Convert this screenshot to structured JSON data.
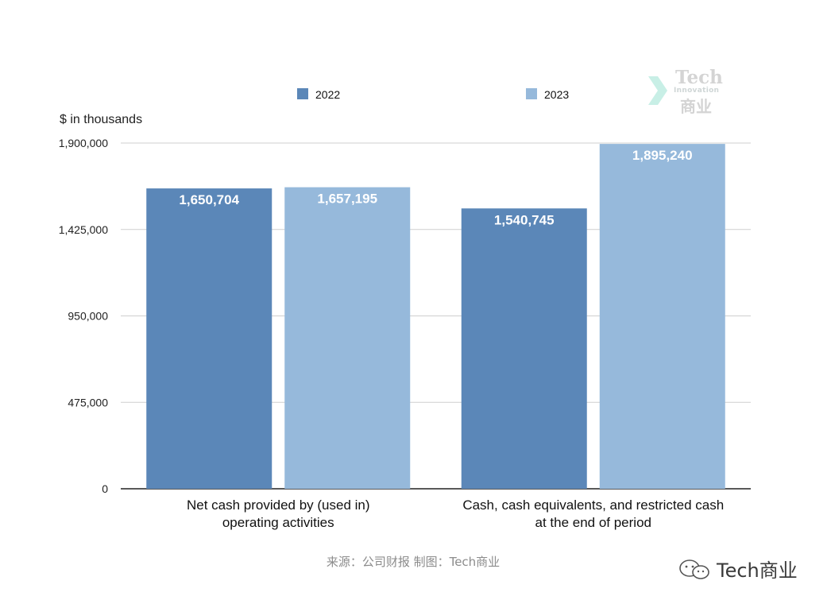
{
  "chart_data": {
    "type": "bar",
    "title": "",
    "ylabel": "$ in thousands",
    "xlabel": "",
    "ylim": [
      0,
      1900000
    ],
    "yticks": [
      "0",
      "475,000",
      "950,000",
      "1,425,000",
      "1,900,000"
    ],
    "ytick_values": [
      0,
      475000,
      950000,
      1425000,
      1900000
    ],
    "categories": [
      [
        "Net cash provided by (used in)",
        "operating activities"
      ],
      [
        "Cash, cash equivalents, and restricted cash",
        "at the end of period"
      ]
    ],
    "series": [
      {
        "name": "2022",
        "color": "#5b87b8",
        "values": [
          1650704,
          1540745
        ],
        "labels": [
          "1,650,704",
          "1,540,745"
        ]
      },
      {
        "name": "2023",
        "color": "#96b9db",
        "values": [
          1657195,
          1895240
        ],
        "labels": [
          "1,657,195",
          "1,895,240"
        ]
      }
    ],
    "legend_position": "top",
    "grid": true
  },
  "watermark": {
    "line1": "Tech",
    "line2": "Innovation",
    "line3": "商业"
  },
  "source": "来源：公司财报 制图：Tech商业",
  "account": "Tech商业",
  "icons": {
    "watermark": "chevron-logo-icon",
    "account": "wechat-account-icon"
  }
}
